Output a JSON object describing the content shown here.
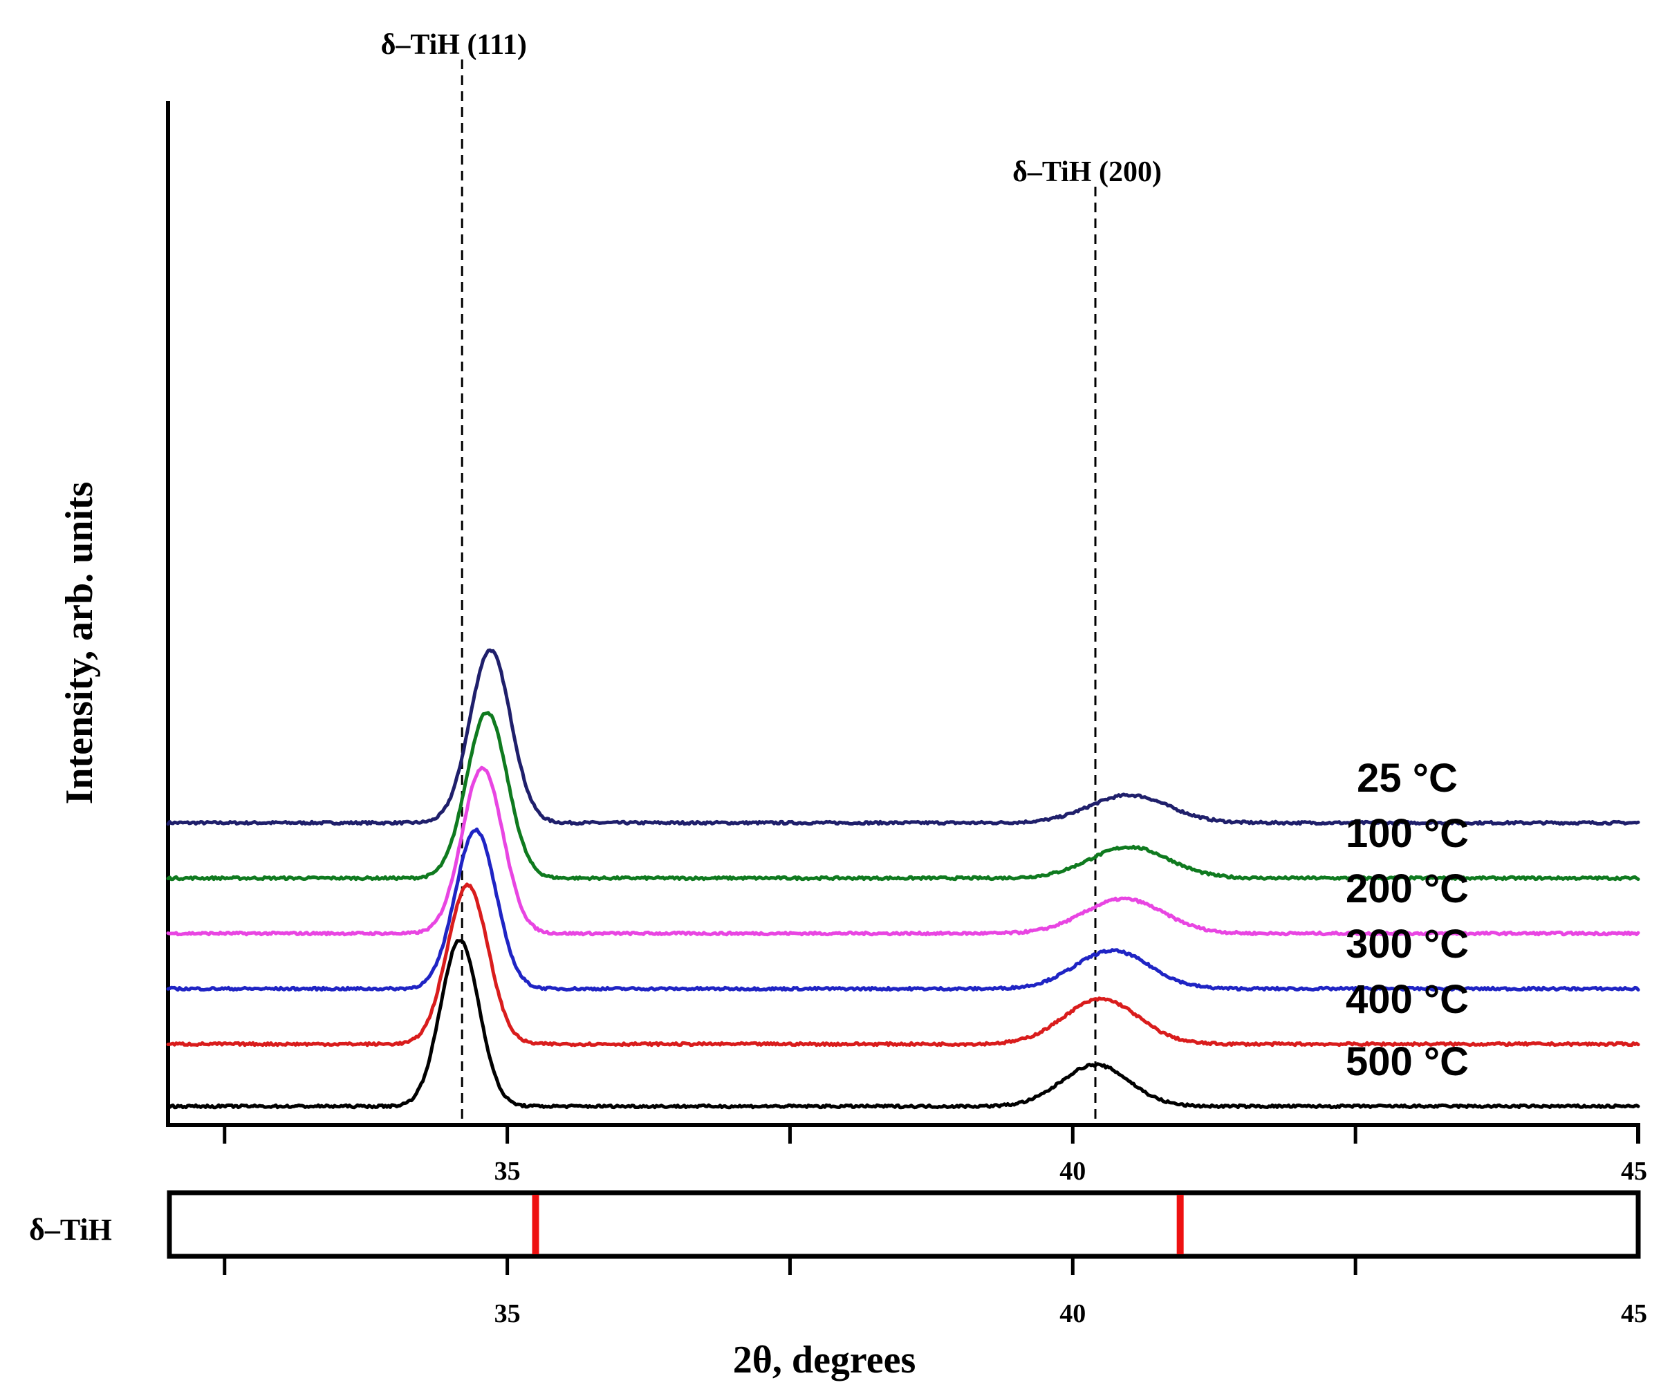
{
  "chart_data": {
    "type": "line",
    "subtype": "stacked-xrd-patterns",
    "xlabel": "2θ, degrees",
    "ylabel": "Intensity, arb. units",
    "xlim": [
      32,
      45
    ],
    "major_ticks": [
      35,
      40,
      45
    ],
    "minor_ticks": [
      32.5,
      35,
      37.5,
      40,
      42.5,
      45
    ],
    "tick_labels": [
      "35",
      "40",
      "45"
    ],
    "reference_lines": [
      {
        "label": "δ–TiH (111)",
        "x": 34.6
      },
      {
        "label": "δ–TiH (200)",
        "x": 40.2
      }
    ],
    "series": [
      {
        "name": "25 °C",
        "color": "#1f1f6b",
        "offset": 4.1,
        "peaks": [
          {
            "x": 34.85,
            "height": 2.5,
            "width": 0.18
          },
          {
            "x": 40.5,
            "height": 0.4,
            "width": 0.35
          }
        ]
      },
      {
        "name": "100 °C",
        "color": "#0f7a1f",
        "offset": 3.3,
        "peaks": [
          {
            "x": 34.82,
            "height": 2.4,
            "width": 0.18
          },
          {
            "x": 40.5,
            "height": 0.45,
            "width": 0.35
          }
        ]
      },
      {
        "name": "200 °C",
        "color": "#e845e2",
        "offset": 2.5,
        "peaks": [
          {
            "x": 34.78,
            "height": 2.4,
            "width": 0.18
          },
          {
            "x": 40.45,
            "height": 0.5,
            "width": 0.35
          }
        ]
      },
      {
        "name": "300 °C",
        "color": "#1f24c4",
        "offset": 1.7,
        "peaks": [
          {
            "x": 34.72,
            "height": 2.3,
            "width": 0.18
          },
          {
            "x": 40.35,
            "height": 0.55,
            "width": 0.33
          }
        ]
      },
      {
        "name": "400 °C",
        "color": "#d91c1c",
        "offset": 0.9,
        "peaks": [
          {
            "x": 34.65,
            "height": 2.3,
            "width": 0.18
          },
          {
            "x": 40.25,
            "height": 0.65,
            "width": 0.33
          }
        ]
      },
      {
        "name": "500 °C",
        "color": "#000000",
        "offset": 0.0,
        "peaks": [
          {
            "x": 34.58,
            "height": 2.4,
            "width": 0.17
          },
          {
            "x": 40.2,
            "height": 0.6,
            "width": 0.3
          }
        ]
      }
    ],
    "reference_pattern": {
      "label": "δ–TiH",
      "color": "#ee1111",
      "positions": [
        35.25,
        40.95
      ]
    }
  }
}
